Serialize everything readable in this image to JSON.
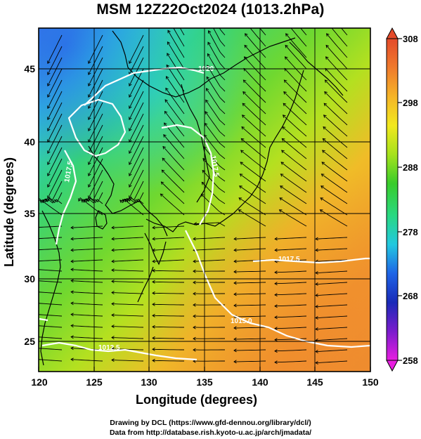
{
  "title": "MSM 12Z22Oct2024 (1013.2hPa)",
  "x_axis": {
    "label": "Longitude (degrees)",
    "range": [
      120,
      150
    ],
    "ticks": [
      "120",
      "125",
      "130",
      "135",
      "140",
      "145",
      "150"
    ]
  },
  "y_axis": {
    "label": "Latitude  (degrees)",
    "range": [
      22.4,
      47.6
    ],
    "ticks": [
      "25",
      "30",
      "35",
      "40",
      "45"
    ]
  },
  "colorbar": {
    "ticks": [
      "308",
      "298",
      "288",
      "278",
      "268",
      "258"
    ],
    "range": [
      258,
      308
    ],
    "colors": [
      "#e81ee0",
      "#7a1ccc",
      "#1a2ab8",
      "#1e64e6",
      "#22c8e0",
      "#29d882",
      "#39cc2a",
      "#a6e21c",
      "#f2e81e",
      "#f5b428",
      "#ef7a2c",
      "#e44a2a"
    ]
  },
  "isobar_labels": [
    "1020",
    "1017.5",
    "1017.5",
    "1017.5",
    "1015.0",
    "1012.5"
  ],
  "credits": {
    "line1": "Drawing by DCL (https://www.gfd-dennou.org/library/dcl/)",
    "line2": "Data from http://database.rish.kyoto-u.ac.jp/arch/jmadata/"
  }
}
